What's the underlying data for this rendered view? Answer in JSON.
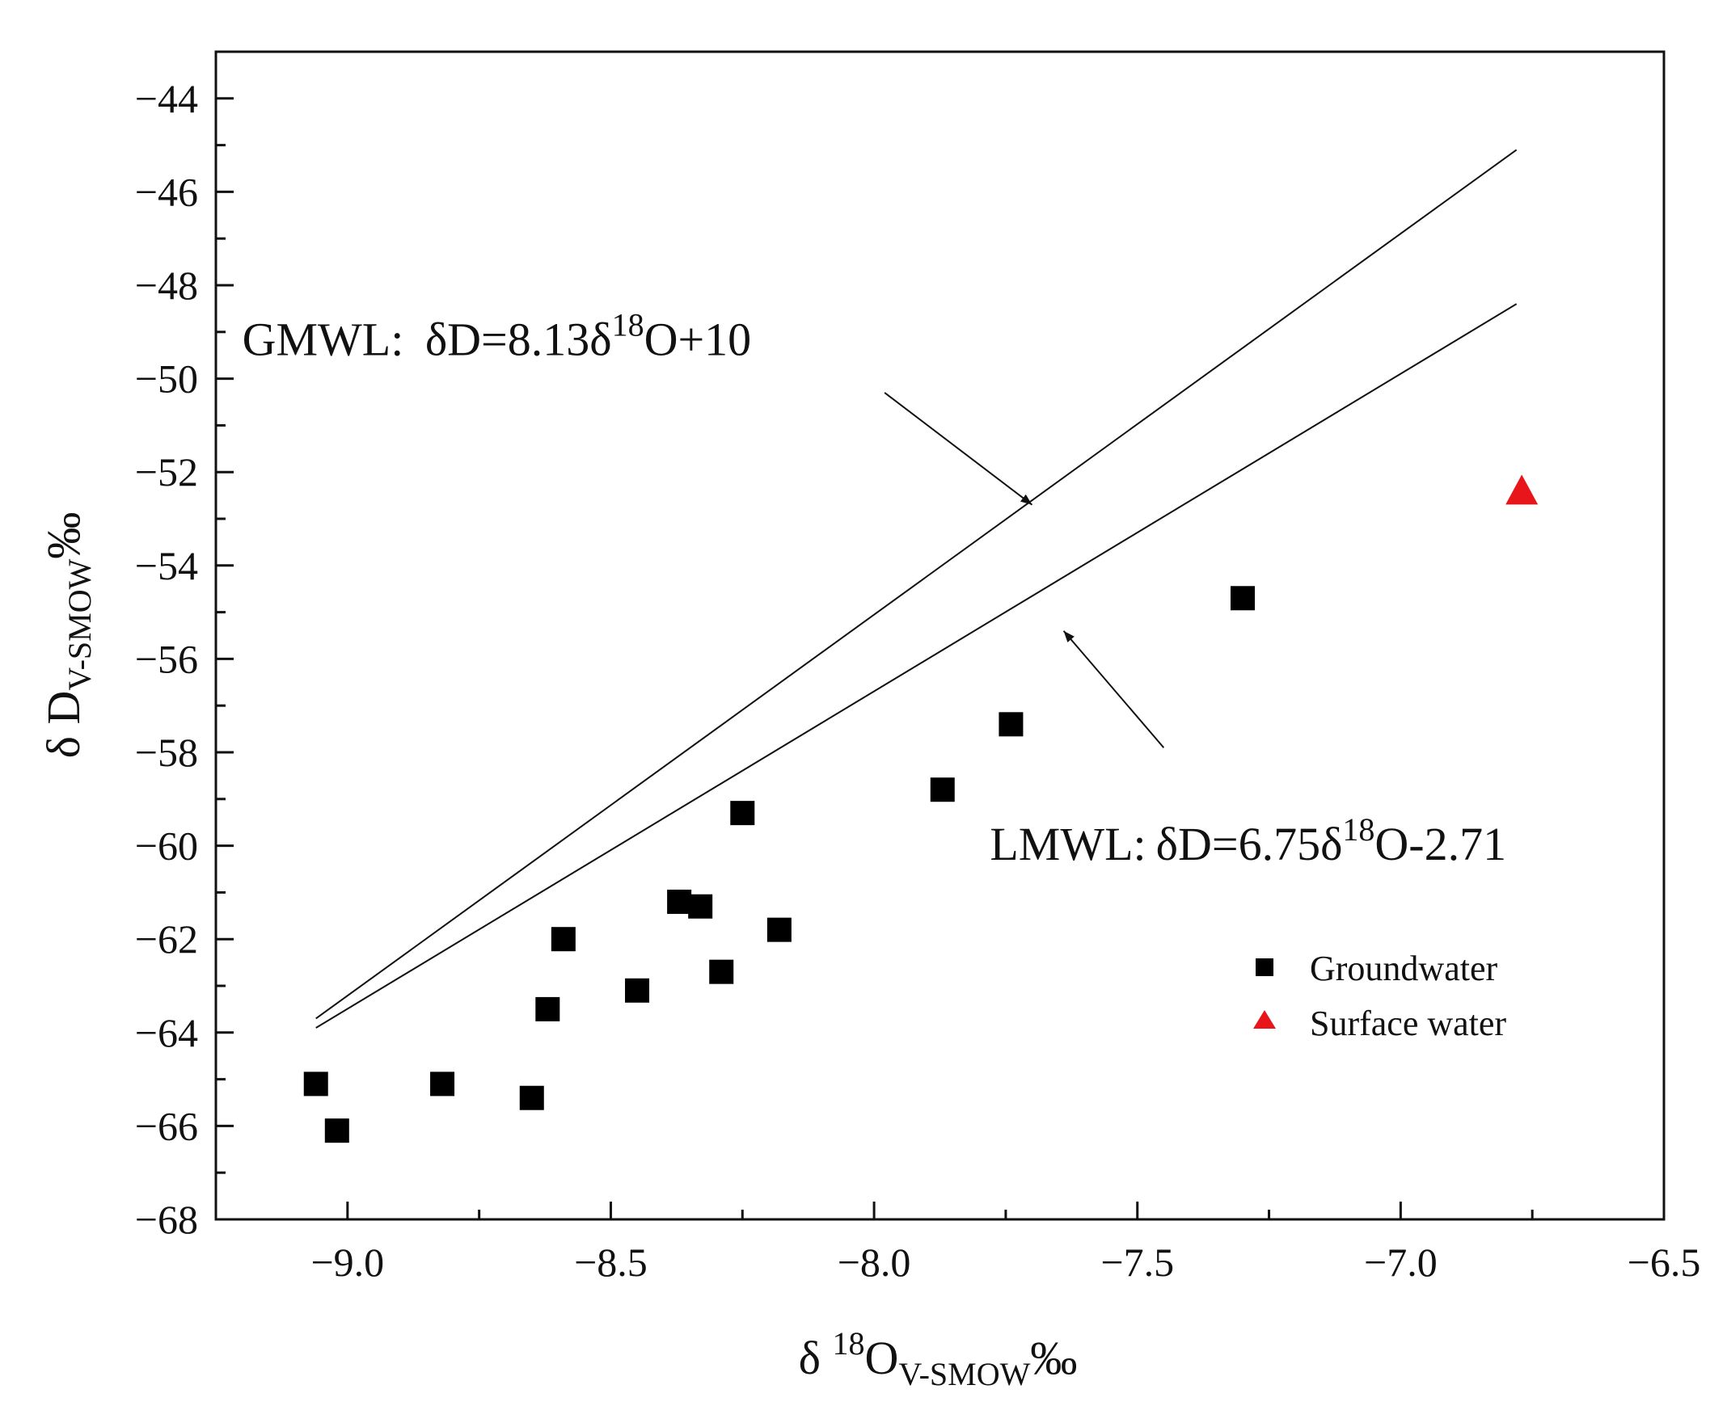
{
  "chart_data": {
    "type": "scatter",
    "xlabel": {
      "prefix": "δ ",
      "sup": "18",
      "main": "O",
      "sub": "V-SMOW",
      "unit": "‰"
    },
    "ylabel": {
      "main": "δ D",
      "sub": "V-SMOW",
      "unit": "‰"
    },
    "xlim": [
      -9.25,
      -6.5
    ],
    "ylim": [
      -68,
      -43
    ],
    "x_ticks": [
      -9.0,
      -8.5,
      -8.0,
      -7.5,
      -7.0,
      -6.5
    ],
    "x_tick_labels": [
      "-9.0",
      "-8.5",
      "-8.0",
      "-7.5",
      "-7.0",
      "-6.5"
    ],
    "y_ticks": [
      -68,
      -66,
      -64,
      -62,
      -60,
      -58,
      -56,
      -54,
      -52,
      -50,
      -48,
      -46,
      -44
    ],
    "y_tick_labels": [
      "-68",
      "-66",
      "-64",
      "-62",
      "-60",
      "-58",
      "-56",
      "-54",
      "-52",
      "-50",
      "-48",
      "-46",
      "-44"
    ],
    "series": [
      {
        "name": "Groundwater",
        "marker": "square",
        "color": "#000000",
        "x": [
          -9.06,
          -9.02,
          -8.82,
          -8.65,
          -8.62,
          -8.59,
          -8.45,
          -8.37,
          -8.33,
          -8.29,
          -8.25,
          -8.18,
          -7.87,
          -7.74,
          -7.3
        ],
        "y": [
          -65.1,
          -66.1,
          -65.1,
          -65.4,
          -63.5,
          -62.0,
          -63.1,
          -61.2,
          -61.3,
          -62.7,
          -59.3,
          -61.8,
          -58.8,
          -57.4,
          -54.7
        ]
      },
      {
        "name": "Surface water",
        "marker": "triangle",
        "color": "#e8161b",
        "x": [
          -6.77
        ],
        "y": [
          -52.4
        ]
      }
    ],
    "lines": [
      {
        "name": "GMWL",
        "x": [
          -9.06,
          -6.78
        ],
        "y": [
          -63.7,
          -45.1
        ],
        "color": "#111111"
      },
      {
        "name": "LMWL",
        "x": [
          -9.06,
          -6.78
        ],
        "y": [
          -63.9,
          -48.4
        ],
        "color": "#111111"
      }
    ],
    "annotations": [
      {
        "id": "gmwl",
        "prefix": "GMWL: ",
        "eq_main": "δD=8.13δ",
        "sup": "18",
        "eq_tail": "O+10",
        "text_anchor": {
          "x": -9.2,
          "y": -49.5
        },
        "arrow_from": {
          "x": -7.98,
          "y": -50.3
        },
        "arrow_to": {
          "x": -7.7,
          "y": -52.7
        }
      },
      {
        "id": "lmwl",
        "prefix": "LMWL:",
        "eq_main": "δD=6.75δ",
        "sup": "18",
        "eq_tail": "O-2.71",
        "text_anchor": {
          "x": -7.78,
          "y": -60.3
        },
        "arrow_from": {
          "x": -7.45,
          "y": -57.9
        },
        "arrow_to": {
          "x": -7.64,
          "y": -55.4
        }
      }
    ],
    "legend": {
      "position": "bottom-right",
      "entries": [
        "Groundwater",
        "Surface water"
      ]
    }
  }
}
